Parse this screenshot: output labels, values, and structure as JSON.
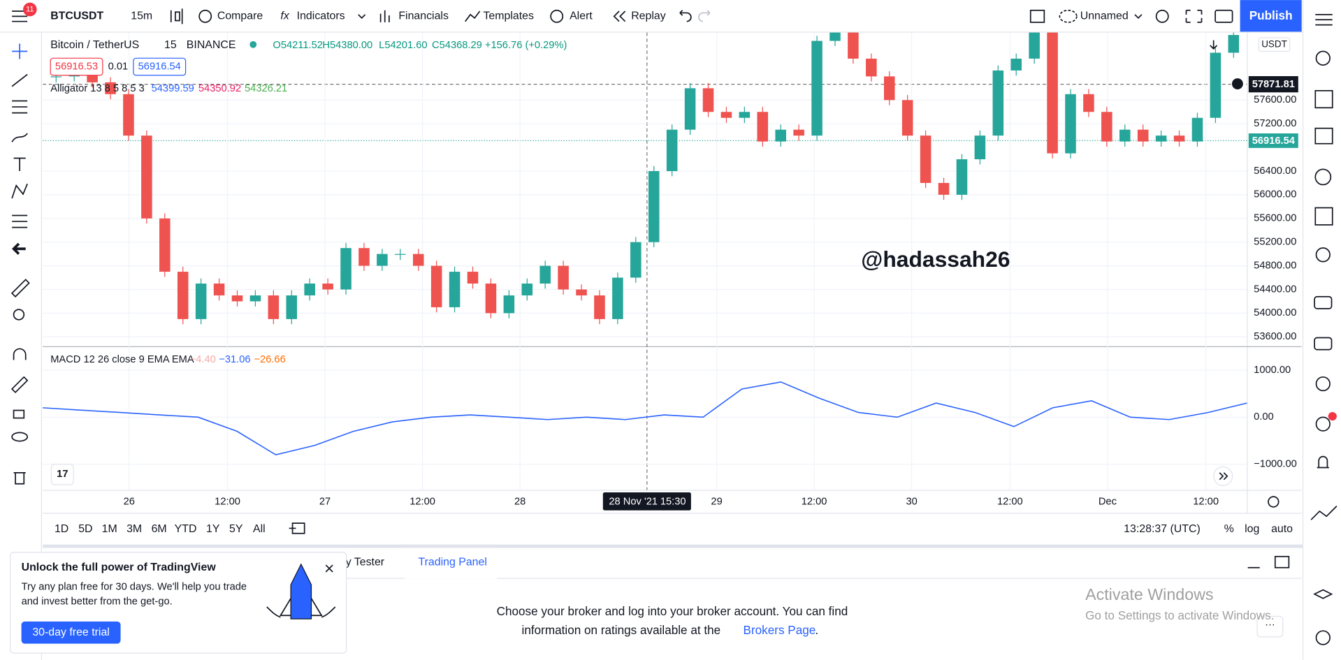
{
  "top_toolbar": {
    "notification_count": "11",
    "symbol": "BTCUSDT",
    "interval": "15m",
    "compare": "Compare",
    "indicators": "Indicators",
    "financials": "Financials",
    "templates": "Templates",
    "alert": "Alert",
    "replay": "Replay",
    "layout_name": "Unnamed",
    "publish": "Publish"
  },
  "legend": {
    "symbol_name": "Bitcoin / TetherUS",
    "interval": "15",
    "exchange": "BINANCE",
    "open": "O54211.52",
    "high": "H54380.00",
    "low": "L54201.60",
    "close": "C54368.29",
    "change": "+156.76 (+0.29%)",
    "sell_price": "56916.53",
    "spread": "0.01",
    "buy_price": "56916.54",
    "alligator_label": "Alligator 13 8 5 8 5 3",
    "alligator_jaw": "54399.59",
    "alligator_teeth": "54350.92",
    "alligator_lips": "54326.21"
  },
  "price_chart": {
    "type": "candlestick",
    "currency": "USDT",
    "current_price_label": "56916.54",
    "crosshair_price_label": "57871.81",
    "ylim": [
      53441,
      58741
    ],
    "yticks": [
      {
        "value": 57600,
        "label": "57600.00"
      },
      {
        "value": 57200,
        "label": "57200.00"
      },
      {
        "value": 56400,
        "label": "56400.00"
      },
      {
        "value": 56000,
        "label": "56000.00"
      },
      {
        "value": 55600,
        "label": "55600.00"
      },
      {
        "value": 55200,
        "label": "55200.00"
      },
      {
        "value": 54800,
        "label": "54800.00"
      },
      {
        "value": 54400,
        "label": "54400.00"
      },
      {
        "value": 54000,
        "label": "54000.00"
      },
      {
        "value": 53600,
        "label": "53600.00"
      }
    ],
    "closes": [
      58000,
      58100,
      57900,
      57700,
      57000,
      55600,
      54700,
      53900,
      54500,
      54300,
      54200,
      54300,
      53900,
      54300,
      54500,
      54400,
      55100,
      54800,
      55000,
      55000,
      54800,
      54100,
      54700,
      54500,
      54000,
      54300,
      54500,
      54800,
      54400,
      54300,
      53900,
      54600,
      55200,
      56400,
      57100,
      57800,
      57400,
      57300,
      57400,
      56900,
      57100,
      57000,
      58600,
      58900,
      58300,
      58000,
      57600,
      57000,
      56200,
      56000,
      56600,
      57000,
      58100,
      58300,
      58800,
      56700,
      57700,
      57400,
      56900,
      57100,
      56900,
      57000,
      56900,
      57300,
      58400,
      58700
    ]
  },
  "macd_chart": {
    "type": "line",
    "label": "MACD 12 26 close 9 EMA EMA",
    "histogram_value": "−4.40",
    "macd_value": "−31.06",
    "signal_value": "−26.66",
    "ylim": [
      -1545,
      1509
    ],
    "yticks": [
      {
        "value": 1000,
        "label": "1000.00"
      },
      {
        "value": 0,
        "label": "0.00"
      },
      {
        "value": -1000,
        "label": "−1000.00"
      }
    ],
    "values": [
      200,
      150,
      100,
      50,
      0,
      -300,
      -800,
      -600,
      -300,
      -100,
      0,
      50,
      0,
      -50,
      0,
      -50,
      50,
      0,
      600,
      750,
      400,
      100,
      0,
      300,
      100,
      -200,
      200,
      350,
      0,
      -50,
      100,
      300
    ]
  },
  "time_axis": {
    "labels": [
      "26",
      "12:00",
      "27",
      "12:00",
      "28",
      "29",
      "12:00",
      "30",
      "12:00",
      "Dec",
      "12:00"
    ],
    "crosshair_date": "28 Nov '21",
    "crosshair_time": "15:30"
  },
  "watermark": "@hadassah26",
  "range_bar": {
    "ranges": [
      "1D",
      "5D",
      "1M",
      "3M",
      "6M",
      "YTD",
      "1Y",
      "5Y",
      "All"
    ],
    "clock": "13:28:37 (UTC)",
    "percent": "%",
    "log": "log",
    "auto": "auto"
  },
  "bottom_panel": {
    "tabs": [
      "gy Tester",
      "Trading Panel"
    ],
    "message_line1": "Choose your broker and log into your broker account. You can find",
    "message_line2": "information on ratings available at the",
    "link": "Brokers Page",
    "period": "."
  },
  "promo": {
    "title": "Unlock the full power of TradingView",
    "line1": "Try any plan free for 30 days. We'll help you trade",
    "line2": "and invest better from the get-go.",
    "button": "30-day free trial"
  },
  "os_watermark": {
    "title": "Activate Windows",
    "subtitle": "Go to Settings to activate Windows."
  }
}
